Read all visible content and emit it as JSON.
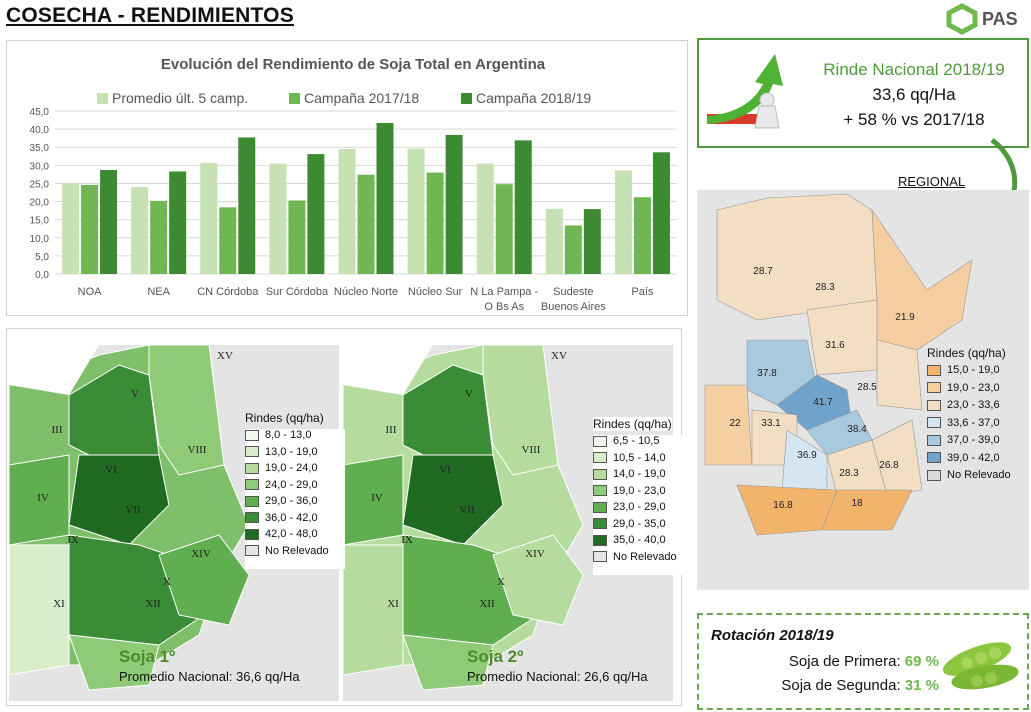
{
  "page": {
    "title": "COSECHA - RENDIMIENTOS",
    "logo_text": "PAS"
  },
  "chart_data": {
    "type": "bar",
    "title": "Evolución del Rendimiento de Soja Total en Argentina",
    "categories": [
      "NOA",
      "NEA",
      "CN Córdoba",
      "Sur Córdoba",
      "Núcleo Norte",
      "Núcleo Sur",
      "N La Pampa - O Bs As",
      "Sudeste Buenos Aires",
      "País"
    ],
    "series": [
      {
        "name": "Promedio últ. 5 camp.",
        "color": "#c6e2b5",
        "values": [
          25.0,
          24.0,
          30.6,
          30.5,
          34.5,
          34.6,
          30.5,
          18.0,
          28.6
        ]
      },
      {
        "name": "Campaña 2017/18",
        "color": "#70b653",
        "values": [
          24.6,
          20.2,
          18.4,
          20.3,
          27.4,
          28.0,
          24.8,
          13.4,
          21.2
        ]
      },
      {
        "name": "Campaña 2018/19",
        "color": "#3c8a32",
        "values": [
          28.7,
          28.3,
          37.7,
          33.1,
          41.7,
          38.4,
          36.9,
          17.9,
          33.6
        ]
      }
    ],
    "ylim": [
      0,
      45
    ],
    "yticks": [
      "0,0",
      "5,0",
      "10,0",
      "15,0",
      "20,0",
      "25,0",
      "30,0",
      "35,0",
      "40,0",
      "45,0"
    ],
    "legend_position": "top",
    "grid": true,
    "xlabel": "",
    "ylabel": ""
  },
  "kpi": {
    "title": "Rinde Nacional 2018/19",
    "value": "33,6 qq/Ha",
    "delta": "+ 58 % vs 2017/18"
  },
  "regional": {
    "label": "REGIONAL",
    "legend_title": "Rindes (qq/ha)",
    "legend": [
      {
        "label": "15,0 - 19,0",
        "color": "#f2b36b"
      },
      {
        "label": "19,0 - 23,0",
        "color": "#f5cfa2"
      },
      {
        "label": "23,0 - 33,6",
        "color": "#f2dec3"
      },
      {
        "label": "33,6 - 37,0",
        "color": "#d5e6f0"
      },
      {
        "label": "37,0 - 39,0",
        "color": "#a9c9df"
      },
      {
        "label": "39,0 - 42,0",
        "color": "#6fa3cb"
      },
      {
        "label": "No Relevado",
        "color": "#d9d9d9"
      }
    ],
    "values": [
      "28.7",
      "28.3",
      "21.9",
      "31.6",
      "37.8",
      "28.5",
      "41.7",
      "22",
      "33.1",
      "38.4",
      "36.9",
      "28.3",
      "26.8",
      "16.8",
      "18"
    ]
  },
  "map_soja1": {
    "title": "Soja 1º",
    "average": "Promedio Nacional: 36,6 qq/Ha",
    "legend_title": "Rindes (qq/ha)",
    "legend": [
      {
        "label": "8,0 - 13,0",
        "color": "#f3f9ee"
      },
      {
        "label": "13,0 - 19,0",
        "color": "#d8eecb"
      },
      {
        "label": "19,0 - 24,0",
        "color": "#b5dc9e"
      },
      {
        "label": "24,0 - 29,0",
        "color": "#8fca77"
      },
      {
        "label": "29,0 - 36,0",
        "color": "#5fae4f"
      },
      {
        "label": "36,0 - 42,0",
        "color": "#3a8c36"
      },
      {
        "label": "42,0 - 48,0",
        "color": "#1f6b22"
      },
      {
        "label": "No Relevado",
        "color": "#e6e6e6"
      }
    ],
    "zones": [
      "XV",
      "V",
      "III",
      "VIII",
      "VI",
      "IV",
      "VII",
      "IX",
      "XIV",
      "X",
      "XI",
      "XII"
    ]
  },
  "map_soja2": {
    "title": "Soja 2º",
    "average": "Promedio Nacional: 26,6 qq/Ha",
    "legend_title": "Rindes (qq/ha)",
    "legend": [
      {
        "label": "6,5 - 10,5",
        "color": "#f3f9ee"
      },
      {
        "label": "10,5 - 14,0",
        "color": "#d8eecb"
      },
      {
        "label": "14,0 - 19,0",
        "color": "#b5dc9e"
      },
      {
        "label": "19,0 - 23,0",
        "color": "#8fca77"
      },
      {
        "label": "23,0 - 29,0",
        "color": "#5fae4f"
      },
      {
        "label": "29,0 - 35,0",
        "color": "#3a8c36"
      },
      {
        "label": "35,0 - 40,0",
        "color": "#1f6b22"
      },
      {
        "label": "No Relevado",
        "color": "#e6e6e6"
      }
    ],
    "zones": [
      "XV",
      "V",
      "III",
      "VIII",
      "VI",
      "IV",
      "VII",
      "IX",
      "XIV",
      "X",
      "XI",
      "XII"
    ]
  },
  "rotation": {
    "title": "Rotación 2018/19",
    "first_label": "Soja de Primera:",
    "first_pct": "69 %",
    "second_label": "Soja de Segunda:",
    "second_pct": "31 %"
  }
}
